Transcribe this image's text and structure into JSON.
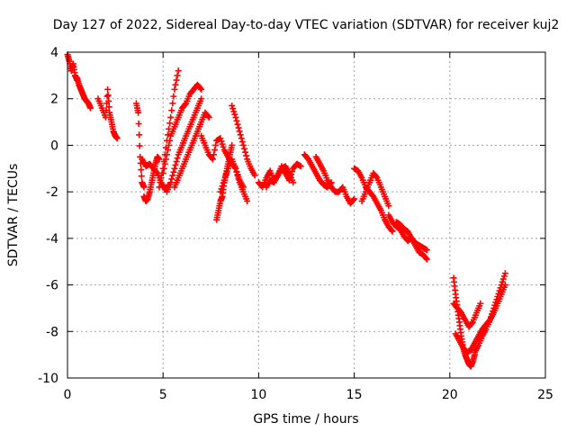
{
  "chart_data": {
    "type": "scatter",
    "title": "Day 127 of 2022, Sidereal Day-to-day VTEC variation (SDTVAR) for receiver kuj2",
    "xlabel": "GPS time / hours",
    "ylabel": "SDTVAR / TECUs",
    "xlim": [
      0,
      25
    ],
    "ylim": [
      -10,
      4
    ],
    "xticks": [
      "0",
      "5",
      "10",
      "15",
      "20",
      "25"
    ],
    "xtick_values": [
      0,
      5,
      10,
      15,
      20,
      25
    ],
    "yticks": [
      "4",
      "2",
      "0",
      "-2",
      "-4",
      "-6",
      "-8",
      "-10"
    ],
    "ytick_values": [
      4,
      2,
      0,
      -2,
      -4,
      -6,
      -8,
      -10
    ],
    "grid": true,
    "marker": "plus",
    "color": "#ff0000",
    "series": [
      {
        "name": "start",
        "x": [
          0.0,
          0.1,
          0.2,
          0.3,
          0.4,
          0.5
        ],
        "y": [
          3.9,
          3.6,
          3.2,
          3.5,
          3.0,
          2.8
        ]
      },
      {
        "name": "arc-1",
        "x": [
          0.5,
          0.6,
          0.7,
          0.8,
          0.9,
          1.0,
          1.1,
          1.2
        ],
        "y": [
          2.9,
          2.6,
          2.4,
          2.2,
          2.0,
          1.9,
          1.8,
          1.6
        ]
      },
      {
        "name": "arc-2",
        "x": [
          1.6,
          1.8,
          2.0,
          2.1,
          2.2,
          2.3,
          2.4,
          2.5,
          2.6
        ],
        "y": [
          2.0,
          1.6,
          1.2,
          2.4,
          1.4,
          1.0,
          0.6,
          0.4,
          0.3
        ]
      },
      {
        "name": "arc-3",
        "x": [
          3.6,
          3.7,
          3.8,
          3.9,
          4.0
        ],
        "y": [
          1.8,
          1.4,
          -0.5,
          -1.6,
          -1.8
        ]
      },
      {
        "name": "arc-4",
        "x": [
          4.0,
          4.1,
          4.2,
          4.3,
          4.4,
          4.5,
          4.6,
          4.7,
          4.8
        ],
        "y": [
          -2.2,
          -2.4,
          -2.3,
          -2.0,
          -1.6,
          -1.2,
          -0.8,
          -0.5,
          -0.6
        ]
      },
      {
        "name": "arc-5",
        "x": [
          3.9,
          4.1,
          4.3,
          4.5,
          4.7,
          4.9,
          5.1,
          5.3
        ],
        "y": [
          -0.6,
          -0.9,
          -0.8,
          -1.0,
          -1.2,
          -1.6,
          -1.9,
          -1.7
        ]
      },
      {
        "name": "arc-6",
        "x": [
          4.8,
          5.0,
          5.2,
          5.4,
          5.6,
          5.8
        ],
        "y": [
          -1.8,
          -1.0,
          0.2,
          1.2,
          2.4,
          3.2
        ]
      },
      {
        "name": "arc-7",
        "x": [
          5.0,
          5.2,
          5.4,
          5.6,
          5.8,
          6.0,
          6.2,
          6.4,
          6.6,
          6.8,
          7.0
        ],
        "y": [
          -1.2,
          -0.4,
          0.4,
          0.8,
          1.2,
          1.6,
          1.8,
          2.2,
          2.4,
          2.6,
          2.4
        ]
      },
      {
        "name": "arc-8",
        "x": [
          5.2,
          5.4,
          5.6,
          5.8,
          6.0,
          6.2,
          6.4,
          6.6,
          6.8,
          7.0
        ],
        "y": [
          -2.0,
          -1.6,
          -1.0,
          -0.4,
          0.0,
          0.4,
          0.8,
          1.2,
          1.6,
          2.0
        ]
      },
      {
        "name": "arc-9",
        "x": [
          5.6,
          5.8,
          6.0,
          6.2,
          6.4,
          6.6,
          6.8,
          7.0,
          7.2,
          7.4
        ],
        "y": [
          -1.8,
          -1.4,
          -1.0,
          -0.6,
          -0.2,
          0.2,
          0.6,
          1.0,
          1.4,
          1.2
        ]
      },
      {
        "name": "arc-10",
        "x": [
          7.0,
          7.2,
          7.4,
          7.6,
          7.8,
          8.0,
          8.2,
          8.4,
          8.6,
          8.8,
          9.0,
          9.2
        ],
        "y": [
          0.4,
          0.0,
          -0.4,
          -0.6,
          0.2,
          0.3,
          -0.2,
          -0.5,
          -0.8,
          -1.0,
          -1.5,
          -1.8
        ]
      },
      {
        "name": "arc-11",
        "x": [
          7.8,
          7.9,
          8.0,
          8.1,
          8.2,
          8.3,
          8.4,
          8.5,
          8.6
        ],
        "y": [
          -3.2,
          -2.8,
          -2.4,
          -2.2,
          -1.6,
          -1.2,
          -0.8,
          -0.4,
          0.0
        ]
      },
      {
        "name": "arc-12",
        "x": [
          8.0,
          8.2,
          8.4,
          8.6,
          8.8,
          9.0,
          9.2,
          9.4
        ],
        "y": [
          -2.0,
          -1.5,
          -1.0,
          -0.6,
          -1.0,
          -1.6,
          -2.0,
          -2.4
        ]
      },
      {
        "name": "arc-13",
        "x": [
          8.6,
          8.8,
          9.0,
          9.2,
          9.4,
          9.6,
          9.8
        ],
        "y": [
          1.7,
          1.2,
          0.6,
          0.0,
          -0.6,
          -1.0,
          -1.3
        ]
      },
      {
        "name": "arc-14",
        "x": [
          10.0,
          10.2,
          10.4,
          10.6,
          10.8,
          11.0,
          11.2,
          11.4,
          11.6,
          11.8,
          12.0,
          12.2
        ],
        "y": [
          -1.6,
          -1.8,
          -1.4,
          -1.1,
          -1.5,
          -1.3,
          -0.9,
          -1.2,
          -1.5,
          -1.0,
          -0.8,
          -0.9
        ]
      },
      {
        "name": "arc-15",
        "x": [
          10.4,
          10.6,
          10.8,
          11.0,
          11.2,
          11.4,
          11.6,
          11.8
        ],
        "y": [
          -1.8,
          -1.5,
          -1.6,
          -1.3,
          -1.0,
          -0.9,
          -1.2,
          -1.6
        ]
      },
      {
        "name": "arc-16",
        "x": [
          12.4,
          12.6,
          12.8,
          13.0,
          13.2,
          13.4,
          13.6,
          13.8
        ],
        "y": [
          -0.4,
          -0.6,
          -0.9,
          -1.2,
          -1.5,
          -1.7,
          -1.8,
          -1.6
        ]
      },
      {
        "name": "arc-17",
        "x": [
          13.0,
          13.2,
          13.4,
          13.6,
          13.8,
          14.0,
          14.2,
          14.4,
          14.6,
          14.8,
          15.0
        ],
        "y": [
          -0.5,
          -0.8,
          -1.1,
          -1.5,
          -1.8,
          -2.0,
          -2.0,
          -1.8,
          -2.2,
          -2.5,
          -2.3
        ]
      },
      {
        "name": "arc-18",
        "x": [
          15.0,
          15.2,
          15.4,
          15.6,
          15.8,
          16.0,
          16.2,
          16.4,
          16.6,
          16.8,
          17.0
        ],
        "y": [
          -1.0,
          -1.1,
          -1.4,
          -1.8,
          -2.0,
          -2.2,
          -2.5,
          -2.8,
          -3.2,
          -3.5,
          -3.7
        ]
      },
      {
        "name": "arc-19",
        "x": [
          15.4,
          15.6,
          15.8,
          16.0,
          16.2,
          16.4,
          16.6,
          16.8
        ],
        "y": [
          -2.4,
          -2.0,
          -1.6,
          -1.2,
          -1.4,
          -1.8,
          -2.2,
          -2.6
        ]
      },
      {
        "name": "arc-20",
        "x": [
          16.8,
          17.0,
          17.2,
          17.4,
          17.6,
          17.8,
          18.0,
          18.2,
          18.4,
          18.6,
          18.8
        ],
        "y": [
          -3.0,
          -3.3,
          -3.5,
          -3.6,
          -3.9,
          -4.1,
          -4.0,
          -4.3,
          -4.6,
          -4.7,
          -4.9
        ]
      },
      {
        "name": "arc-21",
        "x": [
          17.2,
          17.4,
          17.6,
          17.8,
          18.0,
          18.2,
          18.4,
          18.6,
          18.8
        ],
        "y": [
          -3.3,
          -3.4,
          -3.6,
          -3.7,
          -4.0,
          -4.2,
          -4.3,
          -4.4,
          -4.5
        ]
      },
      {
        "name": "arc-22",
        "x": [
          20.2,
          20.3,
          20.4,
          20.5,
          20.6,
          20.7,
          20.8,
          20.9,
          21.0,
          21.1,
          21.2,
          21.3
        ],
        "y": [
          -5.7,
          -6.4,
          -7.0,
          -7.6,
          -8.2,
          -8.7,
          -9.0,
          -9.2,
          -9.4,
          -9.5,
          -9.3,
          -9.0
        ]
      },
      {
        "name": "arc-23",
        "x": [
          21.3,
          21.5,
          21.7,
          21.9,
          22.1,
          22.3,
          22.5,
          22.7,
          22.9
        ],
        "y": [
          -8.9,
          -8.6,
          -8.2,
          -7.9,
          -7.5,
          -7.0,
          -6.5,
          -6.0,
          -5.5
        ]
      },
      {
        "name": "arc-24",
        "x": [
          20.2,
          20.4,
          20.6,
          20.8,
          21.0,
          21.2,
          21.4,
          21.6
        ],
        "y": [
          -6.8,
          -7.0,
          -7.2,
          -7.5,
          -7.8,
          -7.6,
          -7.2,
          -6.8
        ]
      },
      {
        "name": "arc-25",
        "x": [
          20.3,
          20.5,
          20.7,
          20.9,
          21.1,
          21.3,
          21.5,
          21.7,
          21.9,
          22.1,
          22.3,
          22.5,
          22.7,
          22.9
        ],
        "y": [
          -8.1,
          -8.4,
          -8.7,
          -8.9,
          -8.8,
          -8.5,
          -8.2,
          -7.9,
          -7.7,
          -7.5,
          -7.2,
          -6.8,
          -6.4,
          -6.0
        ]
      }
    ]
  }
}
